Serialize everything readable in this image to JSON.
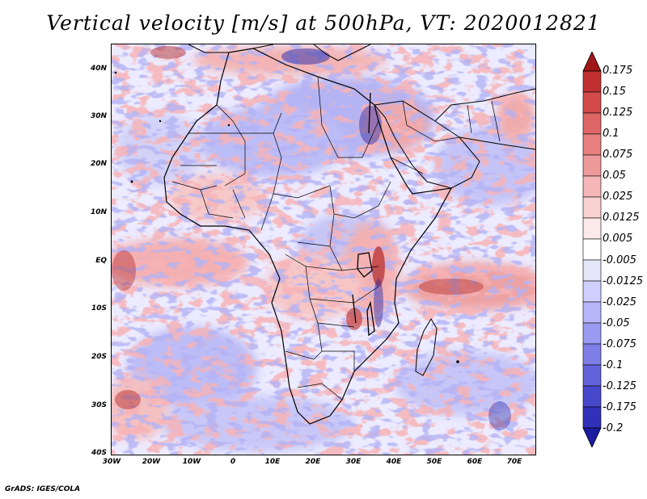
{
  "title": "Vertical velocity [m/s] at 500hPa, VT: 2020012821",
  "map": {
    "lat_labels": [
      "40N",
      "30N",
      "20N",
      "10N",
      "EQ",
      "10S",
      "20S",
      "30S",
      "40S"
    ],
    "lon_labels": [
      "30W",
      "20W",
      "10W",
      "0",
      "10E",
      "20E",
      "30E",
      "40E",
      "50E",
      "60E",
      "70E"
    ],
    "region": "Africa",
    "extent": {
      "lon": [
        -30,
        75
      ],
      "lat": [
        -40,
        45
      ]
    }
  },
  "colorbar": {
    "labels": [
      "0.175",
      "0.15",
      "0.125",
      "0.1",
      "0.075",
      "0.05",
      "0.025",
      "0.0125",
      "0.005",
      "-0.005",
      "-0.0125",
      "-0.025",
      "-0.05",
      "-0.075",
      "-0.1",
      "-0.125",
      "-0.175",
      "-0.2"
    ],
    "colors": [
      "#a01818",
      "#c03030",
      "#d24a4a",
      "#de6666",
      "#e88080",
      "#ee9a9a",
      "#f4b6b6",
      "#f8d0d0",
      "#fceaea",
      "#ffffff",
      "#e6e6fa",
      "#ceceff",
      "#b6b6fa",
      "#9a9af2",
      "#7e7ee6",
      "#6262da",
      "#4848cc",
      "#3030b8",
      "#1c1ca0"
    ]
  },
  "credit": "GrADS: IGES/COLA"
}
